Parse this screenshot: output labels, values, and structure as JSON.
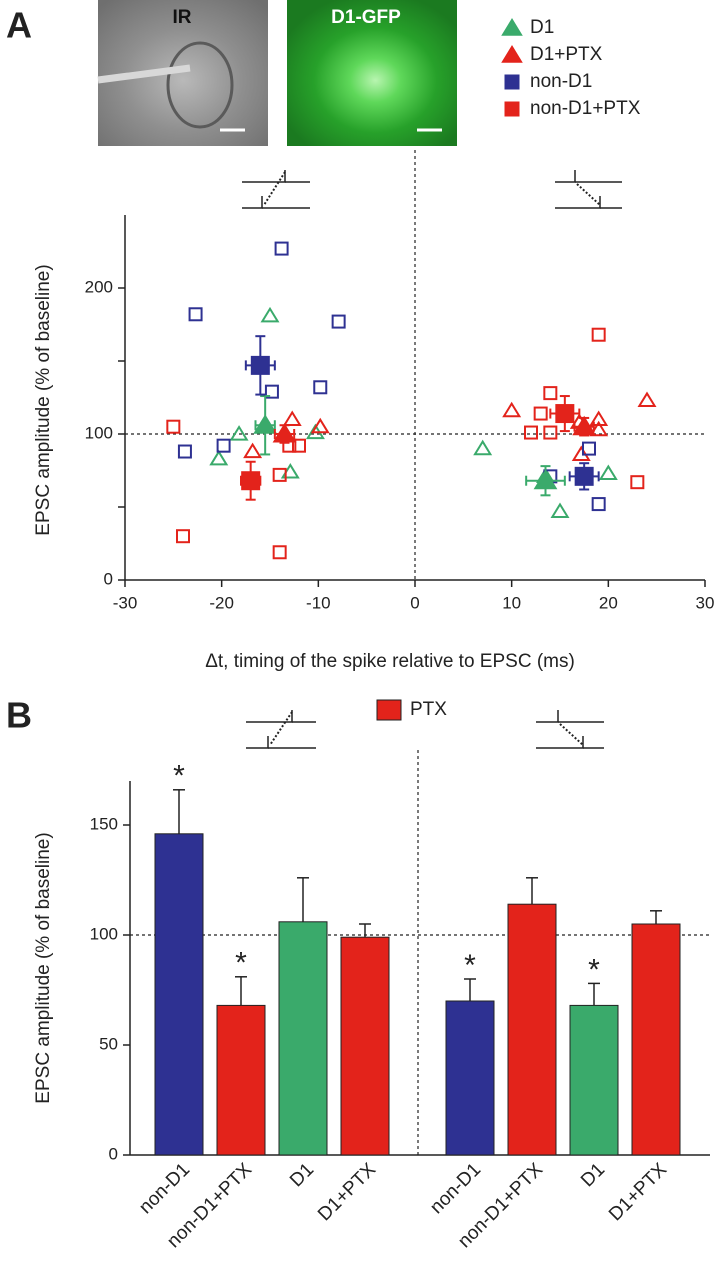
{
  "images": [
    {
      "label": "IR"
    },
    {
      "label": "D1-GFP"
    }
  ],
  "chart_data": [
    {
      "type": "scatter",
      "panel_label": "A",
      "x_label": "Δt, timing of the spike relative to EPSC (ms)",
      "y_label": "EPSC amplitude (% of baseline)",
      "xlim": [
        -30,
        30
      ],
      "ylim": [
        0,
        250
      ],
      "xticks": [
        -30,
        -20,
        -10,
        0,
        10,
        20,
        30
      ],
      "yticks": [
        0,
        100,
        200
      ],
      "yminor_ticks": [
        50,
        150
      ],
      "hlines": [
        100
      ],
      "vlines": [
        0
      ],
      "series": [
        {
          "name": "D1",
          "color": "#3aaa6b",
          "marker": "triangle",
          "x": [
            -15,
            -20.3,
            -18.2,
            -12.9,
            -10.3,
            7,
            15,
            20,
            13.5
          ],
          "values": [
            181,
            83,
            100,
            74,
            101,
            90,
            47,
            73,
            71
          ],
          "mean": {
            "x": [
              -15.5,
              13.5
            ],
            "values": [
              106,
              68
            ],
            "x_errors": [
              1,
              2
            ],
            "errors": [
              20,
              10
            ]
          }
        },
        {
          "name": "D1+PTX",
          "color": "#e3231b",
          "marker": "triangle",
          "x": [
            -16.8,
            -12.7,
            -9.8,
            10,
            17,
            19,
            19,
            17.2,
            24
          ],
          "values": [
            88,
            110,
            105,
            116,
            108,
            110,
            103,
            86,
            123
          ],
          "mean": {
            "x": [
              -13.5,
              17.5
            ],
            "values": [
              100,
              105
            ],
            "x_errors": [
              1,
              1
            ],
            "errors": [
              6,
              6
            ]
          }
        },
        {
          "name": "non-D1",
          "color": "#2e3192",
          "marker": "square",
          "x": [
            -13.8,
            -22.7,
            -7.9,
            -14.8,
            -9.8,
            -23.8,
            -19.8,
            18,
            14,
            19
          ],
          "values": [
            227,
            182,
            177,
            129,
            132,
            88,
            92,
            90,
            71,
            52
          ],
          "mean": {
            "x": [
              -16,
              17.5
            ],
            "values": [
              147,
              71
            ],
            "x_errors": [
              1.5,
              1.5
            ],
            "errors": [
              20,
              9
            ]
          }
        },
        {
          "name": "non-D1+PTX",
          "color": "#e3231b",
          "marker": "square",
          "x": [
            -25,
            -24,
            -14,
            -14,
            -13,
            -12,
            19,
            14,
            13,
            12,
            14,
            23
          ],
          "values": [
            105,
            30,
            19,
            72,
            92,
            92,
            168,
            128,
            114,
            101,
            101,
            67
          ],
          "mean": {
            "x": [
              -17,
              15.5
            ],
            "values": [
              68,
              114
            ],
            "x_errors": [
              1,
              1.5
            ],
            "errors": [
              13,
              12
            ]
          }
        }
      ]
    },
    {
      "type": "bar",
      "panel_label": "B",
      "y_label": "EPSC amplitude (% of baseline)",
      "categories": [
        "non-D1",
        "non-D1+PTX",
        "D1",
        "D1+PTX",
        "non-D1",
        "non-D1+PTX",
        "D1",
        "D1+PTX"
      ],
      "values": [
        146,
        68,
        106,
        99,
        70,
        114,
        68,
        105
      ],
      "errors": [
        20,
        13,
        20,
        6,
        10,
        12,
        10,
        6
      ],
      "colors": [
        "#2e3192",
        "#e3231b",
        "#3aaa6b",
        "#e3231b",
        "#2e3192",
        "#e3231b",
        "#3aaa6b",
        "#e3231b"
      ],
      "significance": [
        "*",
        "*",
        null,
        null,
        "*",
        null,
        "*",
        null
      ],
      "ylim": [
        0,
        170
      ],
      "yticks": [
        0,
        50,
        100,
        150
      ],
      "hlines": [
        100
      ],
      "legend": [
        {
          "name": "PTX",
          "color": "#e3231b"
        }
      ]
    }
  ]
}
